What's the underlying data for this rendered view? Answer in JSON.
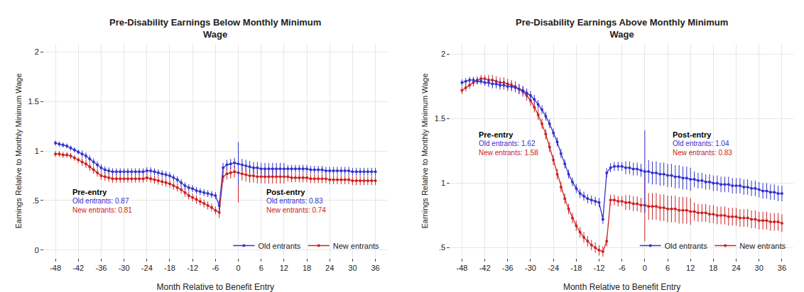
{
  "chart_data": [
    {
      "type": "line",
      "title": "Pre-Disability Earnings Below Monthly Minimum\nWage",
      "xlabel": "Month Relative to Benefit Entry",
      "ylabel": "Earnings Relative to Monthly Minimum Wage",
      "x": [
        -48,
        -47,
        -46,
        -45,
        -44,
        -43,
        -42,
        -41,
        -40,
        -39,
        -38,
        -37,
        -36,
        -35,
        -34,
        -33,
        -32,
        -31,
        -30,
        -29,
        -28,
        -27,
        -26,
        -25,
        -24,
        -23,
        -22,
        -21,
        -20,
        -19,
        -18,
        -17,
        -16,
        -15,
        -14,
        -13,
        -12,
        -11,
        -10,
        -9,
        -8,
        -7,
        -6,
        -5,
        -4,
        -3,
        -2,
        -1,
        0,
        1,
        2,
        3,
        4,
        5,
        6,
        7,
        8,
        9,
        10,
        11,
        12,
        13,
        14,
        15,
        16,
        17,
        18,
        19,
        20,
        21,
        22,
        23,
        24,
        25,
        26,
        27,
        28,
        29,
        30,
        31,
        32,
        33,
        34,
        35,
        36
      ],
      "series": [
        {
          "name": "Old entrants",
          "color": "#3333cc",
          "values": [
            1.08,
            1.07,
            1.06,
            1.05,
            1.03,
            1.01,
            0.99,
            0.97,
            0.95,
            0.92,
            0.89,
            0.86,
            0.83,
            0.81,
            0.8,
            0.79,
            0.79,
            0.79,
            0.79,
            0.79,
            0.79,
            0.79,
            0.79,
            0.79,
            0.8,
            0.8,
            0.79,
            0.78,
            0.77,
            0.76,
            0.75,
            0.73,
            0.71,
            0.68,
            0.65,
            0.63,
            0.62,
            0.6,
            0.59,
            0.58,
            0.57,
            0.56,
            0.55,
            0.45,
            0.83,
            0.86,
            0.87,
            0.88,
            0.87,
            0.86,
            0.85,
            0.84,
            0.83,
            0.83,
            0.82,
            0.82,
            0.82,
            0.82,
            0.82,
            0.82,
            0.82,
            0.82,
            0.82,
            0.82,
            0.82,
            0.82,
            0.82,
            0.81,
            0.81,
            0.81,
            0.81,
            0.8,
            0.8,
            0.8,
            0.8,
            0.8,
            0.8,
            0.8,
            0.79,
            0.79,
            0.79,
            0.79,
            0.79,
            0.79,
            0.79
          ],
          "errors": [
            0.025,
            0.025,
            0.025,
            0.025,
            0.025,
            0.025,
            0.025,
            0.035,
            0.035,
            0.035,
            0.035,
            0.035,
            0.035,
            0.035,
            0.035,
            0.035,
            0.035,
            0.035,
            0.035,
            0.035,
            0.035,
            0.035,
            0.035,
            0.035,
            0.035,
            0.035,
            0.035,
            0.035,
            0.035,
            0.035,
            0.035,
            0.035,
            0.035,
            0.035,
            0.035,
            0.035,
            0.035,
            0.035,
            0.035,
            0.035,
            0.035,
            0.035,
            0.035,
            0.05,
            0.05,
            0.05,
            0.05,
            0.05,
            0.22,
            0.06,
            0.06,
            0.06,
            0.06,
            0.06,
            0.06,
            0.06,
            0.06,
            0.06,
            0.06,
            0.06,
            0.06,
            0.04,
            0.04,
            0.04,
            0.04,
            0.04,
            0.04,
            0.04,
            0.04,
            0.04,
            0.04,
            0.04,
            0.04,
            0.04,
            0.04,
            0.04,
            0.04,
            0.04,
            0.04,
            0.04,
            0.04,
            0.04,
            0.04,
            0.04,
            0.04
          ]
        },
        {
          "name": "New entrants",
          "color": "#cc2222",
          "values": [
            0.97,
            0.97,
            0.96,
            0.96,
            0.95,
            0.93,
            0.91,
            0.89,
            0.87,
            0.84,
            0.81,
            0.78,
            0.75,
            0.74,
            0.73,
            0.72,
            0.72,
            0.72,
            0.72,
            0.72,
            0.72,
            0.72,
            0.72,
            0.72,
            0.73,
            0.72,
            0.71,
            0.7,
            0.69,
            0.68,
            0.67,
            0.65,
            0.63,
            0.61,
            0.58,
            0.55,
            0.53,
            0.51,
            0.49,
            0.47,
            0.45,
            0.43,
            0.4,
            0.38,
            0.74,
            0.77,
            0.78,
            0.79,
            0.78,
            0.77,
            0.76,
            0.75,
            0.75,
            0.74,
            0.74,
            0.74,
            0.74,
            0.74,
            0.74,
            0.74,
            0.74,
            0.74,
            0.73,
            0.73,
            0.73,
            0.73,
            0.73,
            0.72,
            0.72,
            0.72,
            0.72,
            0.72,
            0.71,
            0.71,
            0.71,
            0.71,
            0.71,
            0.71,
            0.7,
            0.7,
            0.7,
            0.7,
            0.7,
            0.7,
            0.7
          ],
          "errors": [
            0.02875,
            0.02875,
            0.02875,
            0.02875,
            0.02875,
            0.02875,
            0.02875,
            0.04025,
            0.04025,
            0.04025,
            0.04025,
            0.04025,
            0.04025,
            0.04025,
            0.04025,
            0.04025,
            0.04025,
            0.04025,
            0.04025,
            0.04025,
            0.04025,
            0.04025,
            0.04025,
            0.04025,
            0.04025,
            0.04025,
            0.04025,
            0.04025,
            0.04025,
            0.04025,
            0.04025,
            0.04025,
            0.04025,
            0.04025,
            0.04025,
            0.04025,
            0.04025,
            0.04025,
            0.04025,
            0.04025,
            0.04025,
            0.04025,
            0.04025,
            0.0575,
            0.0575,
            0.0575,
            0.0575,
            0.0575,
            0.3,
            0.069,
            0.069,
            0.069,
            0.069,
            0.069,
            0.069,
            0.069,
            0.069,
            0.069,
            0.069,
            0.069,
            0.069,
            0.046,
            0.046,
            0.046,
            0.046,
            0.046,
            0.046,
            0.046,
            0.046,
            0.046,
            0.046,
            0.046,
            0.046,
            0.046,
            0.046,
            0.046,
            0.046,
            0.046,
            0.046,
            0.046,
            0.046,
            0.046,
            0.046,
            0.046,
            0.046
          ]
        }
      ],
      "xlim": [
        -51,
        39
      ],
      "xticks": [
        -48,
        -42,
        -36,
        -30,
        -24,
        -18,
        -12,
        -6,
        0,
        6,
        12,
        18,
        24,
        30,
        36
      ],
      "ylim": [
        -0.08,
        2.08
      ],
      "yticks": [
        0,
        {
          "value": 0.5,
          "label": ".5"
        },
        1,
        1.5,
        2
      ],
      "grid": true,
      "legend": "lower right",
      "marker": "circle",
      "line_style": "solid",
      "annotations": [
        {
          "x": -44,
          "y": 0.64,
          "lines": [
            {
              "text": "Pre-entry",
              "color": "black"
            },
            {
              "text": "Old entrants: 0.87",
              "color": "#3333cc"
            },
            {
              "text": "New entrants: 0.81",
              "color": "#cc2222"
            }
          ]
        },
        {
          "x": 7,
          "y": 0.64,
          "lines": [
            {
              "text": "Post-entry",
              "color": "black"
            },
            {
              "text": "Old entrants: 0.83",
              "color": "#3333cc"
            },
            {
              "text": "New entrants: 0.74",
              "color": "#cc2222"
            }
          ]
        }
      ]
    },
    {
      "type": "line",
      "title": "Pre-Disability Earnings Above Monthly Minimum\nWage",
      "xlabel": "Month Relative to Benefit Entry",
      "ylabel": "Earnings Relative to Monthly Minimum Wage",
      "x": [
        -48,
        -47,
        -46,
        -45,
        -44,
        -43,
        -42,
        -41,
        -40,
        -39,
        -38,
        -37,
        -36,
        -35,
        -34,
        -33,
        -32,
        -31,
        -30,
        -29,
        -28,
        -27,
        -26,
        -25,
        -24,
        -23,
        -22,
        -21,
        -20,
        -19,
        -18,
        -17,
        -16,
        -15,
        -14,
        -13,
        -12,
        -11,
        -10,
        -9,
        -8,
        -7,
        -6,
        -5,
        -4,
        -3,
        -2,
        -1,
        0,
        1,
        2,
        3,
        4,
        5,
        6,
        7,
        8,
        9,
        10,
        11,
        12,
        13,
        14,
        15,
        16,
        17,
        18,
        19,
        20,
        21,
        22,
        23,
        24,
        25,
        26,
        27,
        28,
        29,
        30,
        31,
        32,
        33,
        34,
        35,
        36
      ],
      "series": [
        {
          "name": "Old entrants",
          "color": "#3333cc",
          "values": [
            1.78,
            1.79,
            1.8,
            1.8,
            1.79,
            1.79,
            1.78,
            1.78,
            1.77,
            1.77,
            1.76,
            1.76,
            1.75,
            1.75,
            1.74,
            1.73,
            1.72,
            1.7,
            1.68,
            1.65,
            1.61,
            1.57,
            1.52,
            1.46,
            1.39,
            1.32,
            1.23,
            1.15,
            1.07,
            1.01,
            0.96,
            0.92,
            0.9,
            0.88,
            0.87,
            0.86,
            0.85,
            0.72,
            1.08,
            1.12,
            1.13,
            1.13,
            1.13,
            1.12,
            1.12,
            1.11,
            1.11,
            1.1,
            1.09,
            1.09,
            1.08,
            1.08,
            1.07,
            1.07,
            1.06,
            1.06,
            1.05,
            1.05,
            1.04,
            1.04,
            1.03,
            1.03,
            1.02,
            1.02,
            1.01,
            1.01,
            1.0,
            1.0,
            0.99,
            0.99,
            0.99,
            0.98,
            0.98,
            0.98,
            0.97,
            0.97,
            0.96,
            0.96,
            0.95,
            0.94,
            0.94,
            0.93,
            0.93,
            0.92,
            0.92
          ],
          "errors": [
            0.025,
            0.025,
            0.025,
            0.025,
            0.025,
            0.025,
            0.025,
            0.035,
            0.035,
            0.035,
            0.035,
            0.035,
            0.035,
            0.035,
            0.035,
            0.035,
            0.035,
            0.035,
            0.035,
            0.035,
            0.035,
            0.035,
            0.035,
            0.035,
            0.035,
            0.035,
            0.035,
            0.035,
            0.035,
            0.035,
            0.035,
            0.035,
            0.035,
            0.035,
            0.035,
            0.035,
            0.035,
            0.035,
            0.035,
            0.035,
            0.035,
            0.035,
            0.035,
            0.05,
            0.05,
            0.05,
            0.05,
            0.05,
            0.32,
            0.09,
            0.09,
            0.09,
            0.09,
            0.09,
            0.09,
            0.09,
            0.09,
            0.09,
            0.09,
            0.09,
            0.09,
            0.06,
            0.06,
            0.06,
            0.06,
            0.06,
            0.06,
            0.06,
            0.06,
            0.06,
            0.06,
            0.06,
            0.06,
            0.06,
            0.06,
            0.06,
            0.06,
            0.06,
            0.06,
            0.06,
            0.06,
            0.06,
            0.06,
            0.06,
            0.06
          ]
        },
        {
          "name": "New entrants",
          "color": "#cc2222",
          "values": [
            1.72,
            1.74,
            1.76,
            1.78,
            1.8,
            1.81,
            1.81,
            1.8,
            1.8,
            1.79,
            1.78,
            1.78,
            1.77,
            1.76,
            1.75,
            1.73,
            1.71,
            1.68,
            1.64,
            1.59,
            1.53,
            1.46,
            1.38,
            1.28,
            1.18,
            1.07,
            0.97,
            0.88,
            0.8,
            0.73,
            0.67,
            0.62,
            0.58,
            0.55,
            0.52,
            0.5,
            0.48,
            0.47,
            0.55,
            0.87,
            0.87,
            0.86,
            0.86,
            0.85,
            0.85,
            0.84,
            0.84,
            0.83,
            0.83,
            0.82,
            0.82,
            0.82,
            0.81,
            0.81,
            0.8,
            0.8,
            0.8,
            0.79,
            0.79,
            0.79,
            0.78,
            0.78,
            0.77,
            0.77,
            0.77,
            0.76,
            0.76,
            0.75,
            0.75,
            0.75,
            0.74,
            0.74,
            0.74,
            0.73,
            0.73,
            0.73,
            0.72,
            0.72,
            0.71,
            0.71,
            0.71,
            0.7,
            0.7,
            0.7,
            0.69
          ],
          "errors": [
            0.02875,
            0.02875,
            0.02875,
            0.02875,
            0.02875,
            0.02875,
            0.02875,
            0.04025,
            0.04025,
            0.04025,
            0.04025,
            0.04025,
            0.04025,
            0.04025,
            0.04025,
            0.04025,
            0.04025,
            0.04025,
            0.04025,
            0.04025,
            0.04025,
            0.04025,
            0.04025,
            0.04025,
            0.04025,
            0.04025,
            0.04025,
            0.04025,
            0.04025,
            0.04025,
            0.04025,
            0.04025,
            0.04025,
            0.04025,
            0.04025,
            0.04025,
            0.04025,
            0.04025,
            0.04025,
            0.04025,
            0.04025,
            0.04025,
            0.04025,
            0.0575,
            0.0575,
            0.0575,
            0.0575,
            0.0575,
            0.28,
            0.1035,
            0.1035,
            0.1035,
            0.1035,
            0.1035,
            0.1035,
            0.1035,
            0.1035,
            0.1035,
            0.1035,
            0.1035,
            0.1035,
            0.069,
            0.069,
            0.069,
            0.069,
            0.069,
            0.069,
            0.069,
            0.069,
            0.069,
            0.069,
            0.069,
            0.069,
            0.069,
            0.069,
            0.069,
            0.069,
            0.069,
            0.069,
            0.069,
            0.069,
            0.069,
            0.069,
            0.069,
            0.069
          ]
        }
      ],
      "xlim": [
        -51,
        39
      ],
      "xticks": [
        -48,
        -42,
        -36,
        -30,
        -24,
        -18,
        -12,
        -6,
        0,
        6,
        12,
        18,
        24,
        30,
        36
      ],
      "ylim": [
        0.42,
        2.08
      ],
      "yticks": [
        {
          "value": 0.5,
          "label": ".5"
        },
        1,
        1.5,
        2
      ],
      "grid": true,
      "legend": "lower right",
      "marker": "circle",
      "line_style": "solid",
      "annotations": [
        {
          "x": -44,
          "y": 1.42,
          "lines": [
            {
              "text": "Pre-entry",
              "color": "black"
            },
            {
              "text": "Old entrants: 1.62",
              "color": "#3333cc"
            },
            {
              "text": "New entrants: 1.58",
              "color": "#cc2222"
            }
          ]
        },
        {
          "x": 7,
          "y": 1.42,
          "lines": [
            {
              "text": "Post-entry",
              "color": "black"
            },
            {
              "text": "Old entrants: 1.04",
              "color": "#3333cc"
            },
            {
              "text": "New entrants: 0.83",
              "color": "#cc2222"
            }
          ]
        }
      ]
    }
  ]
}
